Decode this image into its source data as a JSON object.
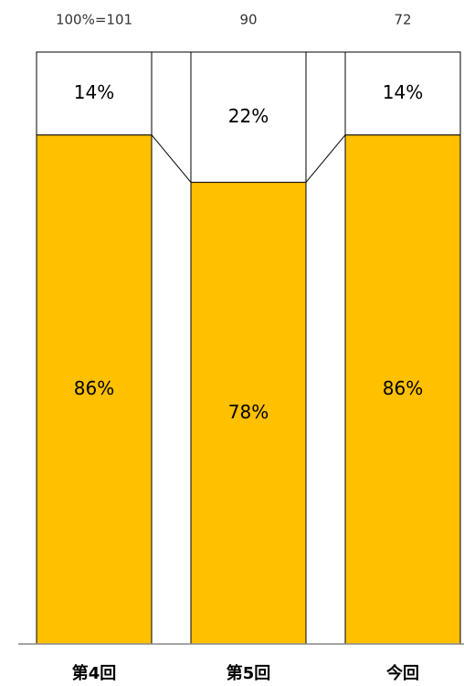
{
  "chart_data": {
    "type": "stacked_bar_100",
    "categories": [
      "第4回",
      "第5回",
      "今回"
    ],
    "ylim": [
      0,
      100
    ],
    "totals": {
      "values": [
        101,
        90,
        72
      ],
      "value_labels": [
        "100%=101",
        "90",
        "72"
      ]
    },
    "series": [
      {
        "color": "#FFC000",
        "values": [
          86,
          78,
          86
        ],
        "value_labels": [
          "86%",
          "78%",
          "86%"
        ]
      },
      {
        "color": "#FFFFFF",
        "values": [
          14,
          22,
          14
        ],
        "value_labels": [
          "14%",
          "22%",
          "14%"
        ]
      }
    ],
    "connectors": true
  }
}
